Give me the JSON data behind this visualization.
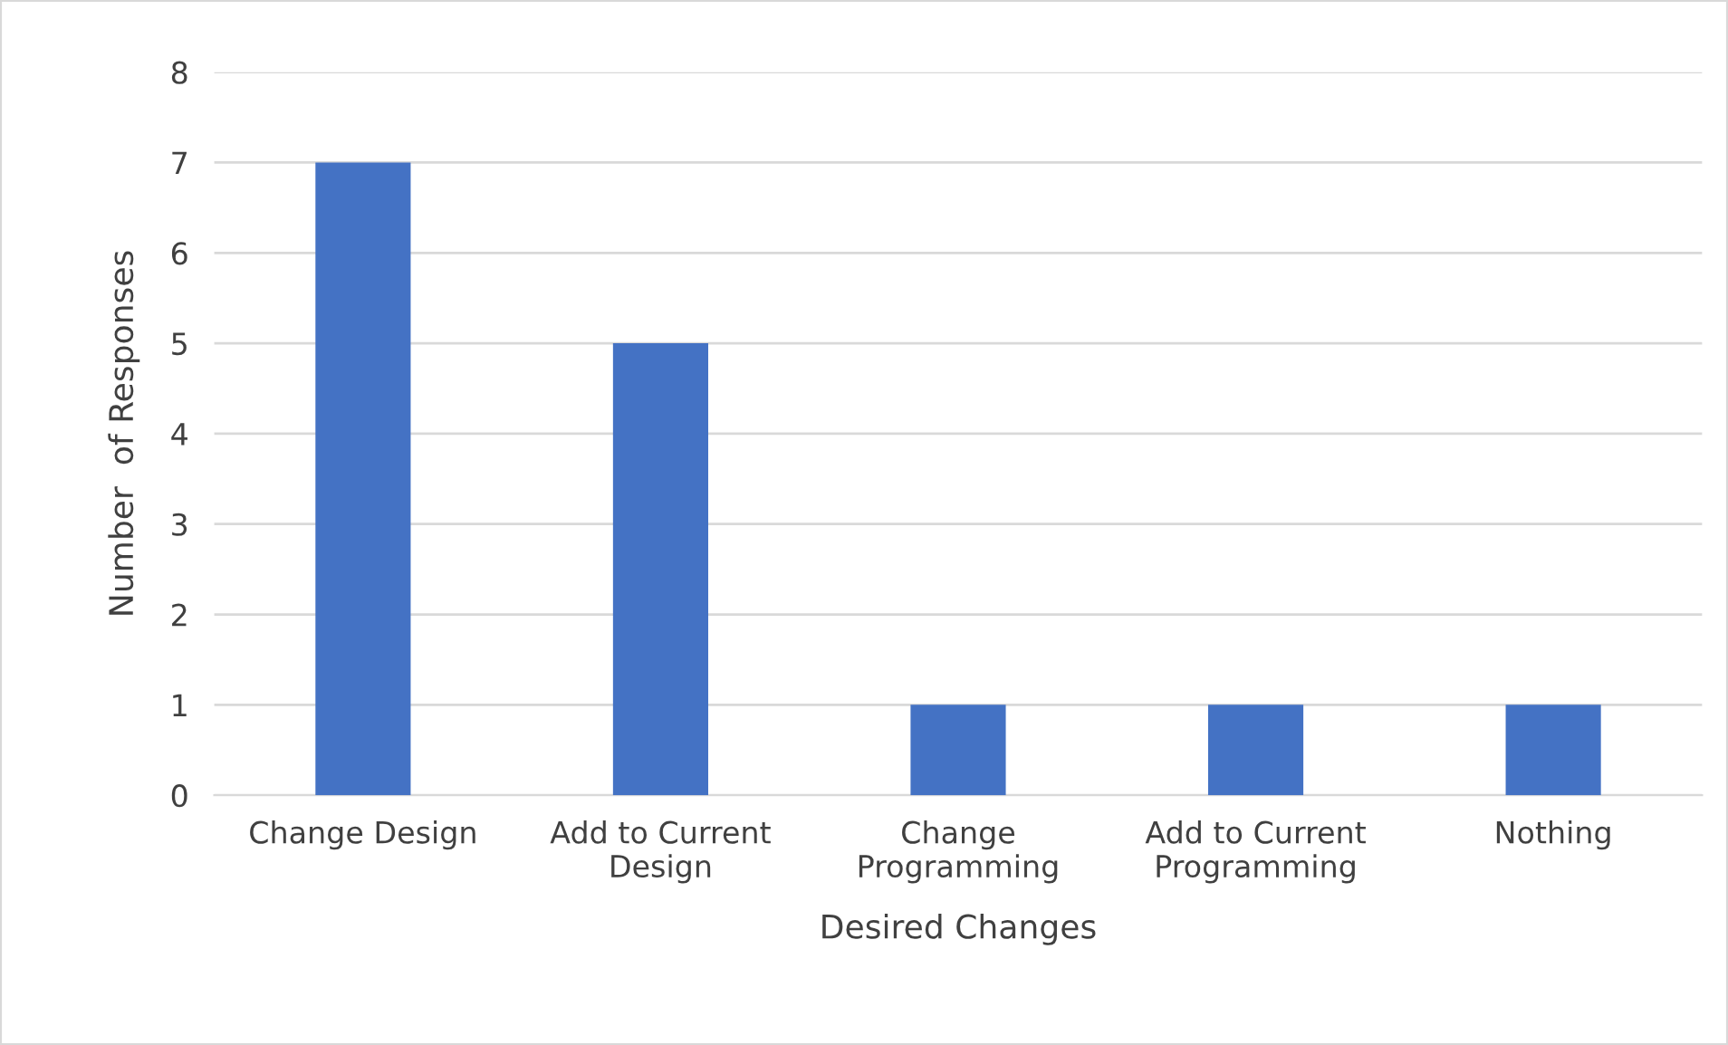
{
  "chart_data": {
    "type": "bar",
    "xlabel": "Desired Changes",
    "ylabel": "Number  of Responses",
    "categories": [
      "Change Design",
      "Add to Current\nDesign",
      "Change\nProgramming",
      "Add to Current\nProgramming",
      "Nothing"
    ],
    "values": [
      7,
      5,
      1,
      1,
      1
    ],
    "color": "#4472c4",
    "ylim": [
      0,
      8
    ],
    "yticks": [
      0,
      1,
      2,
      3,
      4,
      5,
      6,
      7,
      8
    ],
    "grid": "y",
    "legend": false
  }
}
